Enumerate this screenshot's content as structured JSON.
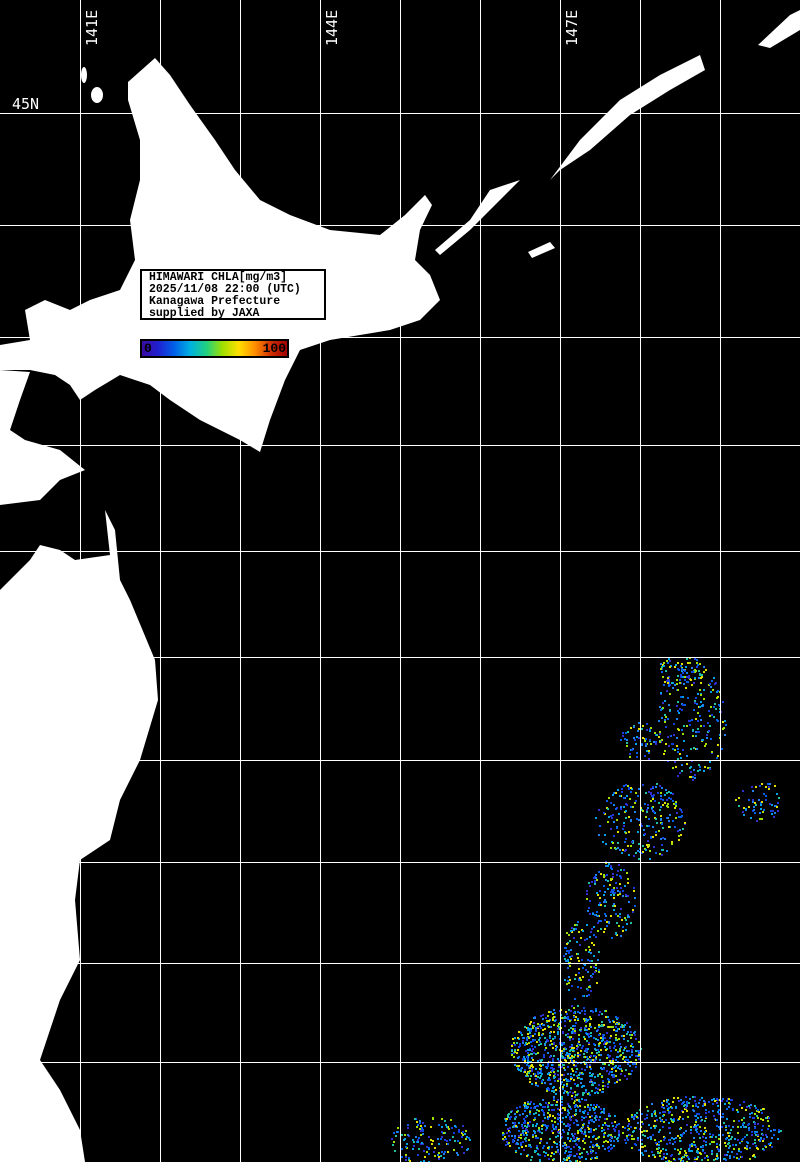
{
  "map": {
    "title": "HIMAWARI CHLA[mg/m3]",
    "datetime": "2025/11/08 22:00 (UTC)",
    "region": "Kanagawa Prefecture",
    "credit": "supplied by JAXA",
    "colorbar": {
      "min_label": "0",
      "max_label": "100",
      "colors": [
        "#3a0aa0",
        "#2020d0",
        "#0060e8",
        "#00b0e0",
        "#20d080",
        "#a0e000",
        "#ffe000",
        "#ff9000",
        "#d03000",
        "#a00000"
      ]
    },
    "longitude_labels": [
      "141E",
      "144E",
      "147E"
    ],
    "latitude_labels": [
      "45N"
    ],
    "land_color": "#ffffff",
    "ocean_nodata_color": "#000000",
    "grid_color": "#ffffff"
  }
}
